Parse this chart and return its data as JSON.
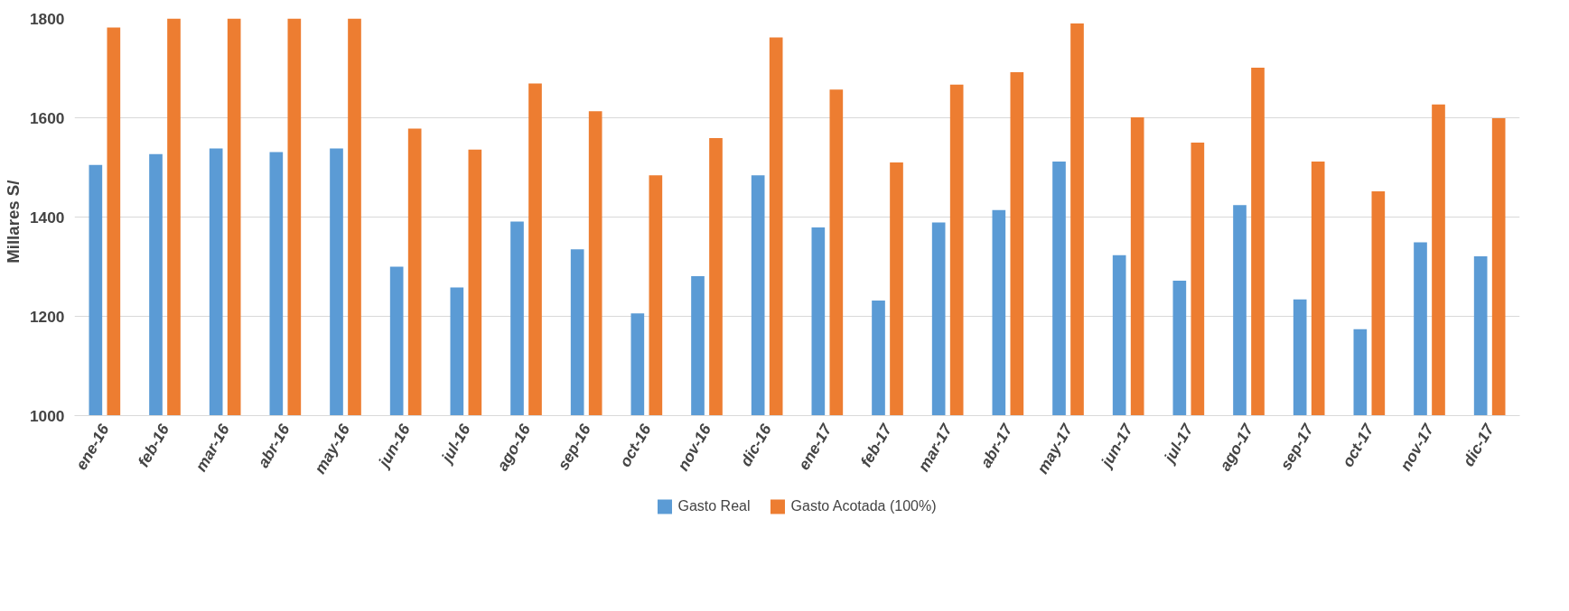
{
  "chart_data": {
    "type": "bar",
    "ylabel": "Millares   S/",
    "categories": [
      "ene-16",
      "feb-16",
      "mar-16",
      "abr-16",
      "may-16",
      "jun-16",
      "jul-16",
      "ago-16",
      "sep-16",
      "oct-16",
      "nov-16",
      "dic-16",
      "ene-17",
      "feb-17",
      "mar-17",
      "abr-17",
      "may-17",
      "jun-17",
      "jul-17",
      "ago-17",
      "sep-17",
      "oct-17",
      "nov-17",
      "dic-17"
    ],
    "series": [
      {
        "name": "Gasto Real",
        "color": "#5b9bd5",
        "values": [
          1505,
          1527,
          1538,
          1531,
          1538,
          1300,
          1258,
          1391,
          1335,
          1206,
          1281,
          1484,
          1379,
          1232,
          1389,
          1414,
          1512,
          1323,
          1272,
          1424,
          1234,
          1174,
          1349,
          1321
        ]
      },
      {
        "name": "Gasto Acotada (100%)",
        "color": "#ed7d31",
        "values": [
          1782,
          1800,
          1800,
          1800,
          1800,
          1578,
          1536,
          1669,
          1613,
          1484,
          1559,
          1762,
          1657,
          1510,
          1667,
          1692,
          1790,
          1601,
          1550,
          1701,
          1512,
          1452,
          1627,
          1599
        ]
      }
    ],
    "ylim": [
      1000,
      1800
    ],
    "yticks": [
      1000,
      1200,
      1400,
      1600,
      1800
    ],
    "grid": "y",
    "legend": "bottom"
  }
}
